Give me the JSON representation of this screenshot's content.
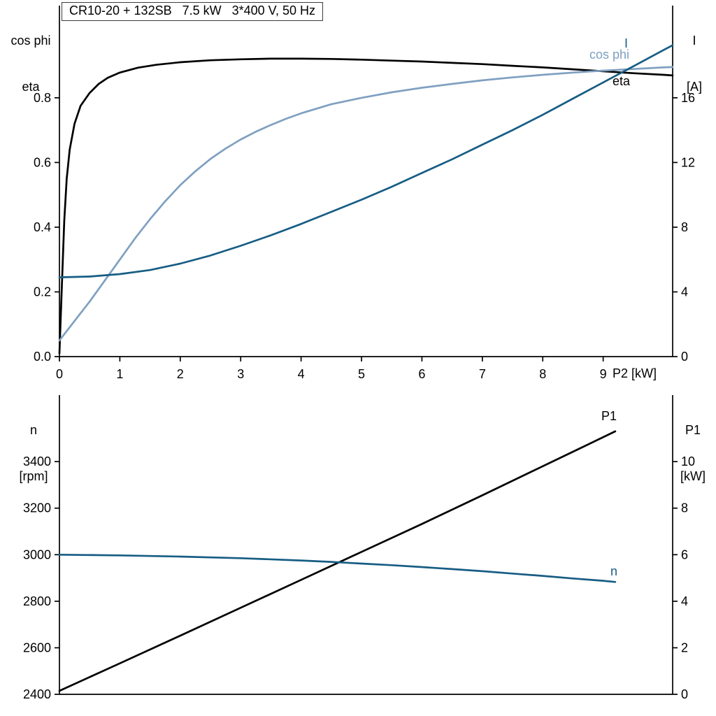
{
  "title_box": {
    "text": "CR10-20 + 132SB   7.5 kW   3*400 V, 50 Hz"
  },
  "colors": {
    "black": "#000000",
    "dark_blue": "#175d84",
    "light_blue": "#7fa0c1",
    "axis": "#000000",
    "background": "#ffffff"
  },
  "chart_data": [
    {
      "type": "line",
      "x_axis": {
        "label": "P2 [kW]",
        "lim": [
          0,
          10.15
        ],
        "ticks": [
          {
            "v": 0,
            "label": "0"
          },
          {
            "v": 1,
            "label": "1"
          },
          {
            "v": 2,
            "label": "2"
          },
          {
            "v": 3,
            "label": "3"
          },
          {
            "v": 4,
            "label": "4"
          },
          {
            "v": 5,
            "label": "5"
          },
          {
            "v": 6,
            "label": "6"
          },
          {
            "v": 7,
            "label": "7"
          },
          {
            "v": 8,
            "label": "8"
          },
          {
            "v": 9,
            "label": "9"
          }
        ]
      },
      "left_axis": {
        "title_line1": "cos phi",
        "title_line2": "eta",
        "lim": [
          0,
          1.085
        ],
        "ticks": [
          {
            "v": 0.0,
            "label": "0.0"
          },
          {
            "v": 0.2,
            "label": "0.2"
          },
          {
            "v": 0.4,
            "label": "0.4"
          },
          {
            "v": 0.6,
            "label": "0.6"
          },
          {
            "v": 0.8,
            "label": "0.8"
          }
        ]
      },
      "right_axis": {
        "title_line1": "I",
        "title_line2": "[A]",
        "lim": [
          0,
          21.7
        ],
        "ticks": [
          {
            "v": 0,
            "label": "0"
          },
          {
            "v": 4,
            "label": "4"
          },
          {
            "v": 8,
            "label": "8"
          },
          {
            "v": 12,
            "label": "12"
          },
          {
            "v": 16,
            "label": "16"
          }
        ]
      },
      "series": [
        {
          "name": "eta",
          "label": "eta",
          "axis": "left",
          "color": "black",
          "points": [
            [
              0,
              0.01
            ],
            [
              0.04,
              0.22
            ],
            [
              0.08,
              0.42
            ],
            [
              0.12,
              0.55
            ],
            [
              0.17,
              0.64
            ],
            [
              0.25,
              0.72
            ],
            [
              0.35,
              0.775
            ],
            [
              0.5,
              0.815
            ],
            [
              0.65,
              0.843
            ],
            [
              0.8,
              0.862
            ],
            [
              1,
              0.878
            ],
            [
              1.3,
              0.893
            ],
            [
              1.6,
              0.902
            ],
            [
              2,
              0.91
            ],
            [
              2.5,
              0.916
            ],
            [
              3,
              0.919
            ],
            [
              3.5,
              0.921
            ],
            [
              4,
              0.921
            ],
            [
              4.5,
              0.92
            ],
            [
              5,
              0.918
            ],
            [
              5.5,
              0.915
            ],
            [
              6,
              0.912
            ],
            [
              6.5,
              0.908
            ],
            [
              7,
              0.904
            ],
            [
              7.5,
              0.899
            ],
            [
              8,
              0.894
            ],
            [
              8.5,
              0.888
            ],
            [
              9,
              0.882
            ],
            [
              9.5,
              0.876
            ],
            [
              10,
              0.871
            ],
            [
              10.15,
              0.869
            ]
          ]
        },
        {
          "name": "cos_phi",
          "label": "cos phi",
          "axis": "left",
          "color": "light_blue",
          "points": [
            [
              0,
              0.05
            ],
            [
              0.25,
              0.11
            ],
            [
              0.5,
              0.17
            ],
            [
              0.75,
              0.235
            ],
            [
              1,
              0.3
            ],
            [
              1.25,
              0.365
            ],
            [
              1.5,
              0.425
            ],
            [
              1.75,
              0.48
            ],
            [
              2,
              0.53
            ],
            [
              2.25,
              0.573
            ],
            [
              2.5,
              0.611
            ],
            [
              2.75,
              0.643
            ],
            [
              3,
              0.671
            ],
            [
              3.25,
              0.695
            ],
            [
              3.5,
              0.716
            ],
            [
              3.75,
              0.735
            ],
            [
              4,
              0.752
            ],
            [
              4.5,
              0.78
            ],
            [
              5,
              0.8
            ],
            [
              5.5,
              0.817
            ],
            [
              6,
              0.831
            ],
            [
              6.5,
              0.843
            ],
            [
              7,
              0.854
            ],
            [
              7.5,
              0.863
            ],
            [
              8,
              0.871
            ],
            [
              8.5,
              0.878
            ],
            [
              9,
              0.884
            ],
            [
              9.5,
              0.889
            ],
            [
              10,
              0.894
            ],
            [
              10.15,
              0.895
            ]
          ]
        },
        {
          "name": "current",
          "label": "I",
          "axis": "right",
          "color": "dark_blue",
          "points": [
            [
              0,
              4.9
            ],
            [
              0.5,
              4.95
            ],
            [
              1,
              5.1
            ],
            [
              1.5,
              5.35
            ],
            [
              2,
              5.75
            ],
            [
              2.5,
              6.25
            ],
            [
              3,
              6.85
            ],
            [
              3.5,
              7.5
            ],
            [
              4,
              8.2
            ],
            [
              4.5,
              8.95
            ],
            [
              5,
              9.7
            ],
            [
              5.5,
              10.5
            ],
            [
              6,
              11.35
            ],
            [
              6.5,
              12.2
            ],
            [
              7,
              13.1
            ],
            [
              7.5,
              14.0
            ],
            [
              8,
              14.95
            ],
            [
              8.5,
              15.95
            ],
            [
              9,
              16.95
            ],
            [
              9.5,
              17.95
            ],
            [
              10,
              18.95
            ],
            [
              10.15,
              19.25
            ]
          ]
        }
      ]
    },
    {
      "type": "line",
      "x_axis": {
        "label": "",
        "lim": [
          0,
          10.15
        ],
        "ticks": []
      },
      "left_axis": {
        "title_line1": "n",
        "title_line2": "[rpm]",
        "lim": [
          2400,
          3686
        ],
        "ticks": [
          {
            "v": 2400,
            "label": "2400"
          },
          {
            "v": 2600,
            "label": "2600"
          },
          {
            "v": 2800,
            "label": "2800"
          },
          {
            "v": 3000,
            "label": "3000"
          },
          {
            "v": 3200,
            "label": "3200"
          },
          {
            "v": 3400,
            "label": "3400"
          }
        ]
      },
      "right_axis": {
        "title_line1": "P1",
        "title_line2": "[kW]",
        "lim": [
          0,
          12.86
        ],
        "ticks": [
          {
            "v": 0,
            "label": "0"
          },
          {
            "v": 2,
            "label": "2"
          },
          {
            "v": 4,
            "label": "4"
          },
          {
            "v": 6,
            "label": "6"
          },
          {
            "v": 8,
            "label": "8"
          },
          {
            "v": 10,
            "label": "10"
          }
        ]
      },
      "series": [
        {
          "name": "P1",
          "label": "P1",
          "axis": "right",
          "color": "black",
          "points": [
            [
              0,
              0.15
            ],
            [
              1,
              1.33
            ],
            [
              2,
              2.52
            ],
            [
              3,
              3.72
            ],
            [
              4,
              4.92
            ],
            [
              5,
              6.12
            ],
            [
              6,
              7.32
            ],
            [
              7,
              8.55
            ],
            [
              8,
              9.8
            ],
            [
              8.6,
              10.55
            ],
            [
              9.2,
              11.3
            ]
          ]
        },
        {
          "name": "n",
          "label": "n",
          "axis": "left",
          "color": "dark_blue",
          "points": [
            [
              0,
              3000
            ],
            [
              1,
              2997
            ],
            [
              2,
              2992
            ],
            [
              3,
              2985
            ],
            [
              4,
              2975
            ],
            [
              4.5,
              2969
            ],
            [
              5,
              2962
            ],
            [
              5.5,
              2955
            ],
            [
              6,
              2947
            ],
            [
              6.5,
              2938
            ],
            [
              7,
              2929
            ],
            [
              7.5,
              2919
            ],
            [
              8,
              2909
            ],
            [
              8.5,
              2898
            ],
            [
              9,
              2888
            ],
            [
              9.2,
              2883
            ]
          ]
        }
      ]
    }
  ]
}
